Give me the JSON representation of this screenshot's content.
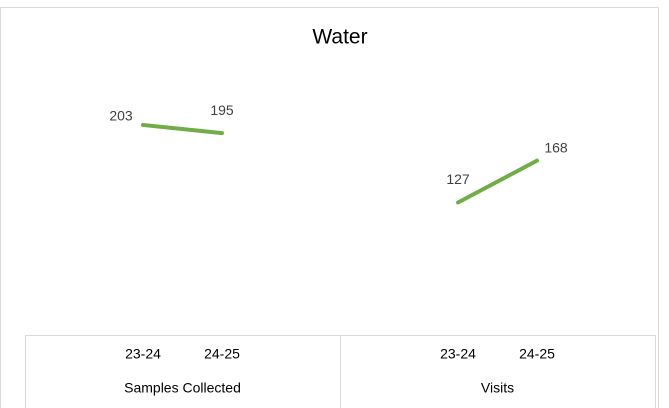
{
  "chart_data": {
    "type": "line",
    "title": "Water",
    "color": "#70ad47",
    "ylim": [
      0,
      250
    ],
    "groups": [
      {
        "name": "Samples Collected",
        "categories": [
          "23-24",
          "24-25"
        ],
        "values": [
          203,
          195
        ]
      },
      {
        "name": "Visits",
        "categories": [
          "23-24",
          "24-25"
        ],
        "values": [
          127,
          168
        ]
      }
    ]
  }
}
